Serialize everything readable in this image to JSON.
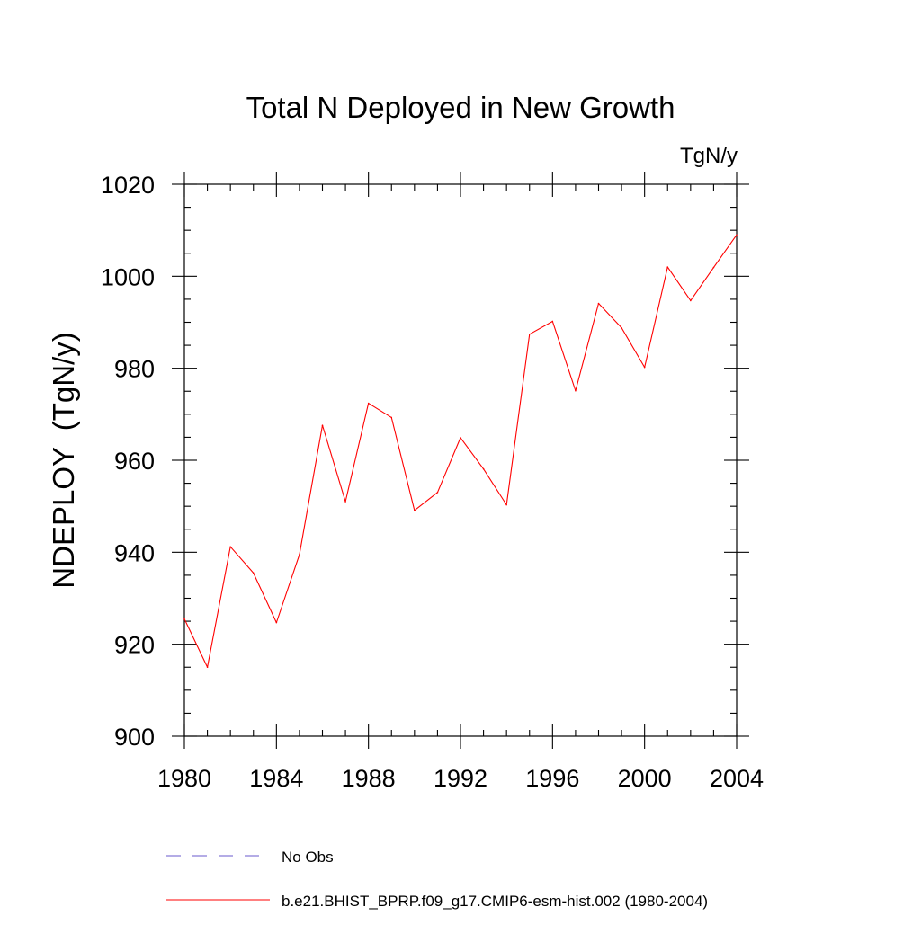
{
  "chart_data": {
    "type": "line",
    "title": "Total N Deployed in New Growth",
    "units_label": "TgN/y",
    "ylabel": "NDEPLOY  (TgN/y)",
    "xlabel": "",
    "xlim": [
      1980,
      2004
    ],
    "ylim": [
      900,
      1020
    ],
    "x_ticks": [
      1980,
      1984,
      1988,
      1992,
      1996,
      2000,
      2004
    ],
    "y_ticks": [
      900,
      920,
      940,
      960,
      980,
      1000,
      1020
    ],
    "x_minor_step": 1,
    "y_minor_step": 5,
    "grid": false,
    "legend_position": "bottom",
    "series": [
      {
        "name": "b.e21.BHIST_BPRP.f09_g17.CMIP6-esm-hist.002 (1980-2004)",
        "color": "#ff0000",
        "style": "solid",
        "x": [
          1980,
          1981,
          1982,
          1983,
          1984,
          1985,
          1986,
          1987,
          1988,
          1989,
          1990,
          1991,
          1992,
          1993,
          1994,
          1995,
          1996,
          1997,
          1998,
          1999,
          2000,
          2001,
          2002,
          2003,
          2004
        ],
        "values": [
          925.5,
          915.0,
          941.2,
          935.5,
          924.7,
          939.5,
          967.6,
          951.0,
          972.4,
          969.3,
          949.1,
          953.0,
          964.9,
          958.1,
          950.3,
          987.4,
          990.2,
          975.1,
          994.1,
          988.8,
          980.2,
          1002.0,
          994.7,
          1001.9,
          1009.0
        ]
      }
    ],
    "legend": [
      {
        "label": "No Obs",
        "color": "#6a5acd",
        "style": "dashed"
      },
      {
        "label": "b.e21.BHIST_BPRP.f09_g17.CMIP6-esm-hist.002 (1980-2004)",
        "color": "#ff0000",
        "style": "solid"
      }
    ]
  }
}
